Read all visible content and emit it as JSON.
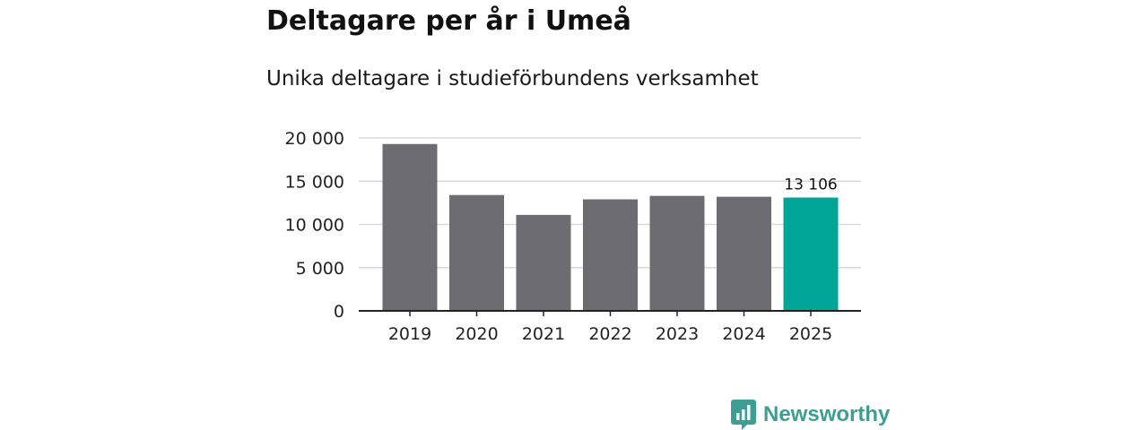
{
  "chart_data": {
    "type": "bar",
    "title": "Deltagare per år i Umeå",
    "subtitle": "Unika deltagare i studieförbundens verksamhet",
    "categories": [
      "2019",
      "2020",
      "2021",
      "2022",
      "2023",
      "2024",
      "2025"
    ],
    "values": [
      19300,
      13400,
      11100,
      12900,
      13300,
      13200,
      13106
    ],
    "highlight_index": 6,
    "data_labels": [
      {
        "index": 6,
        "text": "13 106"
      }
    ],
    "y_ticks": [
      0,
      5000,
      10000,
      15000,
      20000
    ],
    "y_tick_labels": [
      "0",
      "5 000",
      "10 000",
      "15 000",
      "20 000"
    ],
    "ylim": [
      0,
      20000
    ],
    "xlabel": "",
    "ylabel": "",
    "grid": true,
    "legend": "none",
    "colors": {
      "bar": "#6d6c72",
      "highlight": "#00a597",
      "grid": "#d9d9d9",
      "axis": "#222222"
    }
  },
  "brand": {
    "name": "Newsworthy",
    "icon": "newsworthy-logo-icon",
    "color": "#3f9e93"
  }
}
